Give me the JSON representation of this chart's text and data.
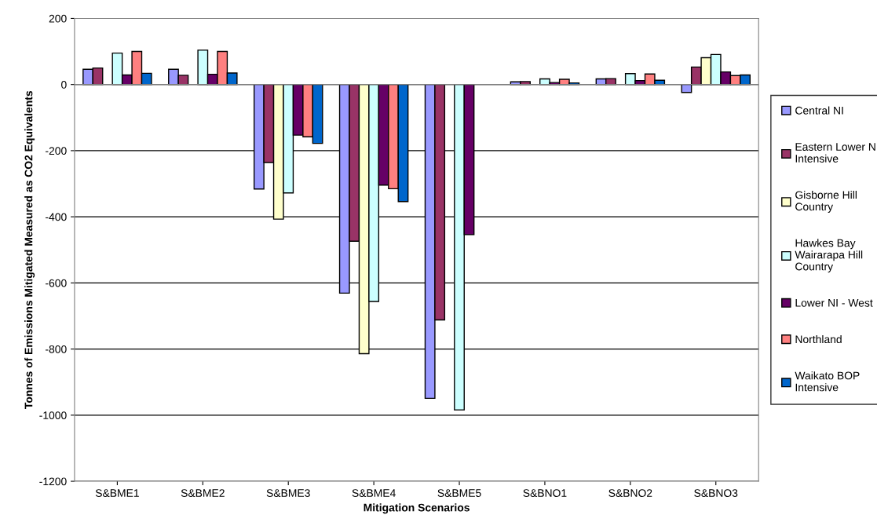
{
  "chart_data": {
    "type": "bar",
    "xlabel": "Mitigation Scenarios",
    "ylabel": "Tonnes of Emissions Mitigated Measured as CO2 Equivalents",
    "categories": [
      "S&BME1",
      "S&BME2",
      "S&BME3",
      "S&BME4",
      "S&BME5",
      "S&BNO1",
      "S&BNO2",
      "S&BNO3"
    ],
    "series": [
      {
        "name": "Central NI",
        "color": "#9999ff",
        "values": [
          46,
          46,
          -316,
          -631,
          -949,
          8,
          17,
          -24
        ]
      },
      {
        "name": "Eastern Lower N Intensive",
        "color": "#993366",
        "values": [
          50,
          28,
          -236,
          -474,
          -712,
          9,
          18,
          53
        ]
      },
      {
        "name": "Gisborne Hill Country",
        "color": "#ffffcc",
        "values": [
          null,
          null,
          -407,
          -814,
          null,
          null,
          null,
          81
        ]
      },
      {
        "name": "Hawkes Bay Wairarapa Hill Country",
        "color": "#ccffff",
        "values": [
          95,
          104,
          -328,
          -656,
          -984,
          17,
          33,
          91
        ]
      },
      {
        "name": "Lower NI - West",
        "color": "#660066",
        "values": [
          29,
          31,
          -153,
          -304,
          -454,
          6,
          12,
          38
        ]
      },
      {
        "name": "Northland",
        "color": "#ff8080",
        "values": [
          100,
          100,
          -158,
          -315,
          null,
          16,
          32,
          27
        ]
      },
      {
        "name": "Waikato BOP Intensive",
        "color": "#0066cc",
        "values": [
          34,
          35,
          -178,
          -354,
          null,
          5,
          13,
          29
        ]
      }
    ],
    "ylim": [
      -1200,
      200
    ],
    "yticks": [
      -1200,
      -1000,
      -800,
      -600,
      -400,
      -200,
      0,
      200
    ],
    "grid": "y",
    "legend": "right"
  }
}
